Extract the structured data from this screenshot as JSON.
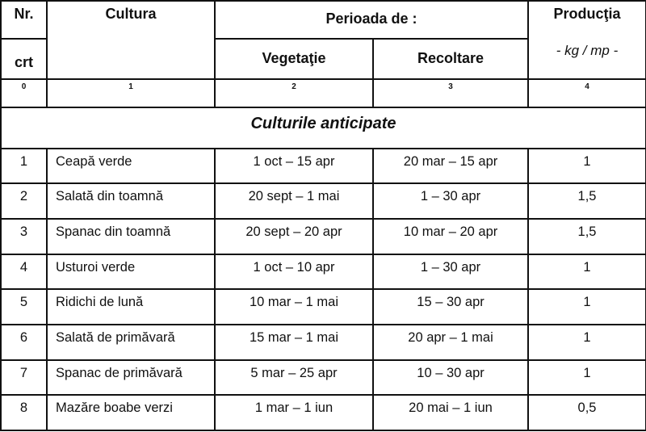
{
  "headers": {
    "nr": "Nr.",
    "crt": "crt",
    "cultura": "Cultura",
    "perioada": "Perioada de :",
    "vegetatie": "Vegetaţie",
    "recoltare": "Recoltare",
    "productia": "Producţia",
    "unit": "- kg / mp -"
  },
  "column_indices": [
    "0",
    "1",
    "2",
    "3",
    "4"
  ],
  "section_title": "Culturile anticipate",
  "rows": [
    {
      "nr": "1",
      "cultura": "Ceapă verde",
      "vegetatie": "1 oct – 15 apr",
      "recoltare": "20 mar – 15 apr",
      "productia": "1"
    },
    {
      "nr": "2",
      "cultura": "Salată din toamnă",
      "vegetatie": "20 sept – 1 mai",
      "recoltare": "1 – 30 apr",
      "productia": "1,5"
    },
    {
      "nr": "3",
      "cultura": "Spanac din toamnă",
      "vegetatie": "20 sept – 20 apr",
      "recoltare": "10 mar – 20 apr",
      "productia": "1,5"
    },
    {
      "nr": "4",
      "cultura": "Usturoi verde",
      "vegetatie": "1 oct – 10 apr",
      "recoltare": "1 – 30 apr",
      "productia": "1"
    },
    {
      "nr": "5",
      "cultura": "Ridichi de lună",
      "vegetatie": "10 mar – 1 mai",
      "recoltare": "15 – 30 apr",
      "productia": "1"
    },
    {
      "nr": "6",
      "cultura": "Salată de primăvară",
      "vegetatie": "15 mar – 1 mai",
      "recoltare": "20 apr – 1 mai",
      "productia": "1"
    },
    {
      "nr": "7",
      "cultura": "Spanac de primăvară",
      "vegetatie": "5 mar – 25 apr",
      "recoltare": "10 – 30 apr",
      "productia": "1"
    },
    {
      "nr": "8",
      "cultura": "Mazăre boabe verzi",
      "vegetatie": "1 mar – 1 iun",
      "recoltare": "20 mai – 1 iun",
      "productia": "0,5"
    }
  ]
}
